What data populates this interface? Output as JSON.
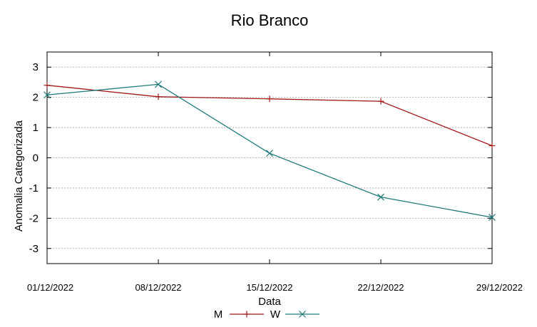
{
  "chart_data": {
    "type": "line",
    "title": "Rio Branco",
    "xlabel": "Data",
    "ylabel": "Anomalia Categorizada",
    "categories": [
      "01/12/2022",
      "08/12/2022",
      "15/12/2022",
      "22/12/2022",
      "29/12/2022"
    ],
    "ylim": [
      -3.5,
      3.5
    ],
    "yticks": [
      -3,
      -2,
      -1,
      0,
      1,
      2,
      3
    ],
    "grid": true,
    "legend_position": "bottom",
    "series": [
      {
        "name": "M",
        "values": [
          2.4,
          2.02,
          1.95,
          1.87,
          0.4
        ],
        "color": "#a01818",
        "marker": "plus"
      },
      {
        "name": "W",
        "values": [
          2.08,
          2.43,
          0.15,
          -1.3,
          -1.97
        ],
        "color": "#1f7a7a",
        "marker": "cross"
      }
    ]
  }
}
